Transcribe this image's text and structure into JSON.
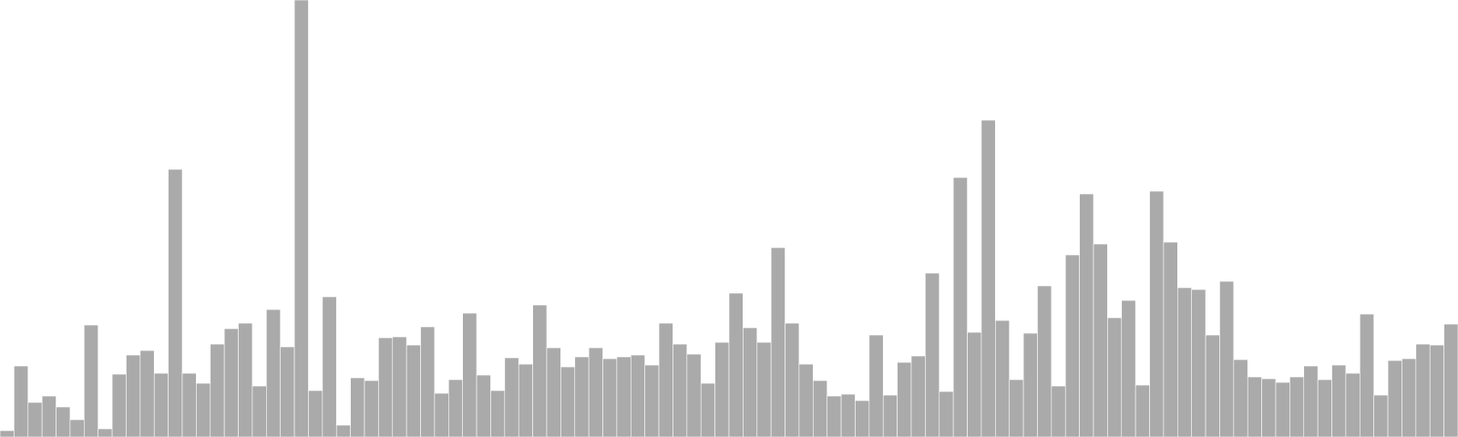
{
  "chart_data": {
    "type": "bar",
    "title": "",
    "xlabel": "",
    "ylabel": "",
    "grid": false,
    "legend": "none",
    "ylim": [
      0,
      480
    ],
    "bar_color": "#aaaaaa",
    "bar_stroke": "#ffffff",
    "values": [
      7,
      78,
      38,
      45,
      33,
      19,
      123,
      9,
      69,
      90,
      95,
      70,
      294,
      70,
      59,
      102,
      119,
      125,
      56,
      140,
      99,
      480,
      51,
      154,
      13,
      65,
      62,
      109,
      110,
      101,
      121,
      48,
      63,
      136,
      68,
      51,
      87,
      80,
      145,
      98,
      77,
      88,
      98,
      86,
      88,
      90,
      79,
      125,
      102,
      91,
      59,
      104,
      158,
      120,
      104,
      208,
      125,
      80,
      62,
      45,
      47,
      40,
      112,
      46,
      82,
      89,
      180,
      50,
      285,
      115,
      348,
      128,
      63,
      114,
      166,
      56,
      200,
      267,
      212,
      131,
      150,
      57,
      270,
      214,
      164,
      162,
      112,
      171,
      85,
      66,
      64,
      60,
      66,
      78,
      63,
      79,
      70,
      135,
      46,
      84,
      86,
      102,
      101,
      124
    ]
  }
}
